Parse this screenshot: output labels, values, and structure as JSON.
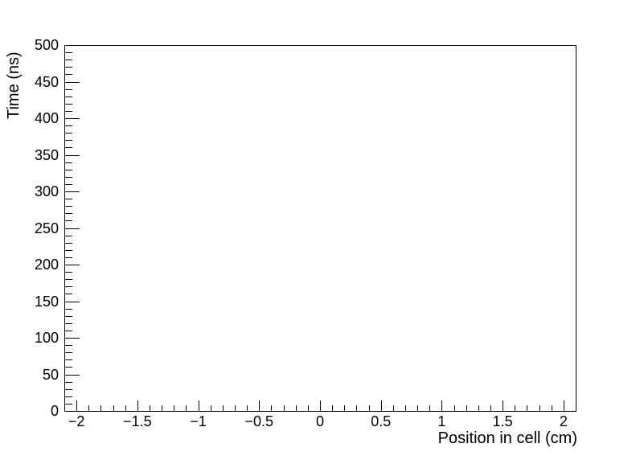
{
  "page": {
    "background_color": "#ffffff"
  },
  "chart_data": {
    "type": "scatter",
    "title": "",
    "xlabel": "Position in cell (cm)",
    "ylabel": "Time (ns)",
    "xlim": [
      -2.1,
      2.1
    ],
    "ylim": [
      0,
      500
    ],
    "x_major_ticks": [
      -2,
      -1.5,
      -1,
      -0.5,
      0,
      0.5,
      1,
      1.5,
      2
    ],
    "x_major_labels": [
      "−2",
      "−1.5",
      "−1",
      "−0.5",
      "0",
      "0.5",
      "1",
      "1.5",
      "2"
    ],
    "x_minor_step": 0.1,
    "y_major_ticks": [
      0,
      50,
      100,
      150,
      200,
      250,
      300,
      350,
      400,
      450,
      500
    ],
    "y_major_labels": [
      "0",
      "50",
      "100",
      "150",
      "200",
      "250",
      "300",
      "350",
      "400",
      "450",
      "500"
    ],
    "y_minor_step": 10,
    "series": [],
    "grid": false,
    "legend": null,
    "axis_color": "#000000",
    "frame": true
  }
}
